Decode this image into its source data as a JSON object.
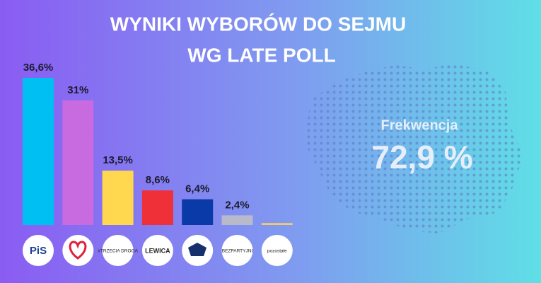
{
  "chart_data": {
    "type": "bar",
    "title_lines": [
      "WYNIKI WYBORÓW DO SEJMU",
      "WG LATE POLL"
    ],
    "categories": [
      "PiS",
      null,
      "#TRZECIA DROGA",
      "LEWICA",
      null,
      "BEZPARTYJNI",
      "pozostałe"
    ],
    "values": [
      36.6,
      31,
      13.5,
      8.6,
      6.4,
      2.4,
      0.5
    ],
    "value_labels": [
      "36,6%",
      "31%",
      "13,5%",
      "8,6%",
      "6,4%",
      "2,4%",
      null
    ],
    "colors": [
      "#00bff3",
      "#c86ae0",
      "#ffd84f",
      "#f03038",
      "#0a3aa8",
      "#b9b9cc",
      "#f2c96e"
    ],
    "annotation": {
      "label": "Frekwencja",
      "value_label": "72,9 %"
    }
  }
}
